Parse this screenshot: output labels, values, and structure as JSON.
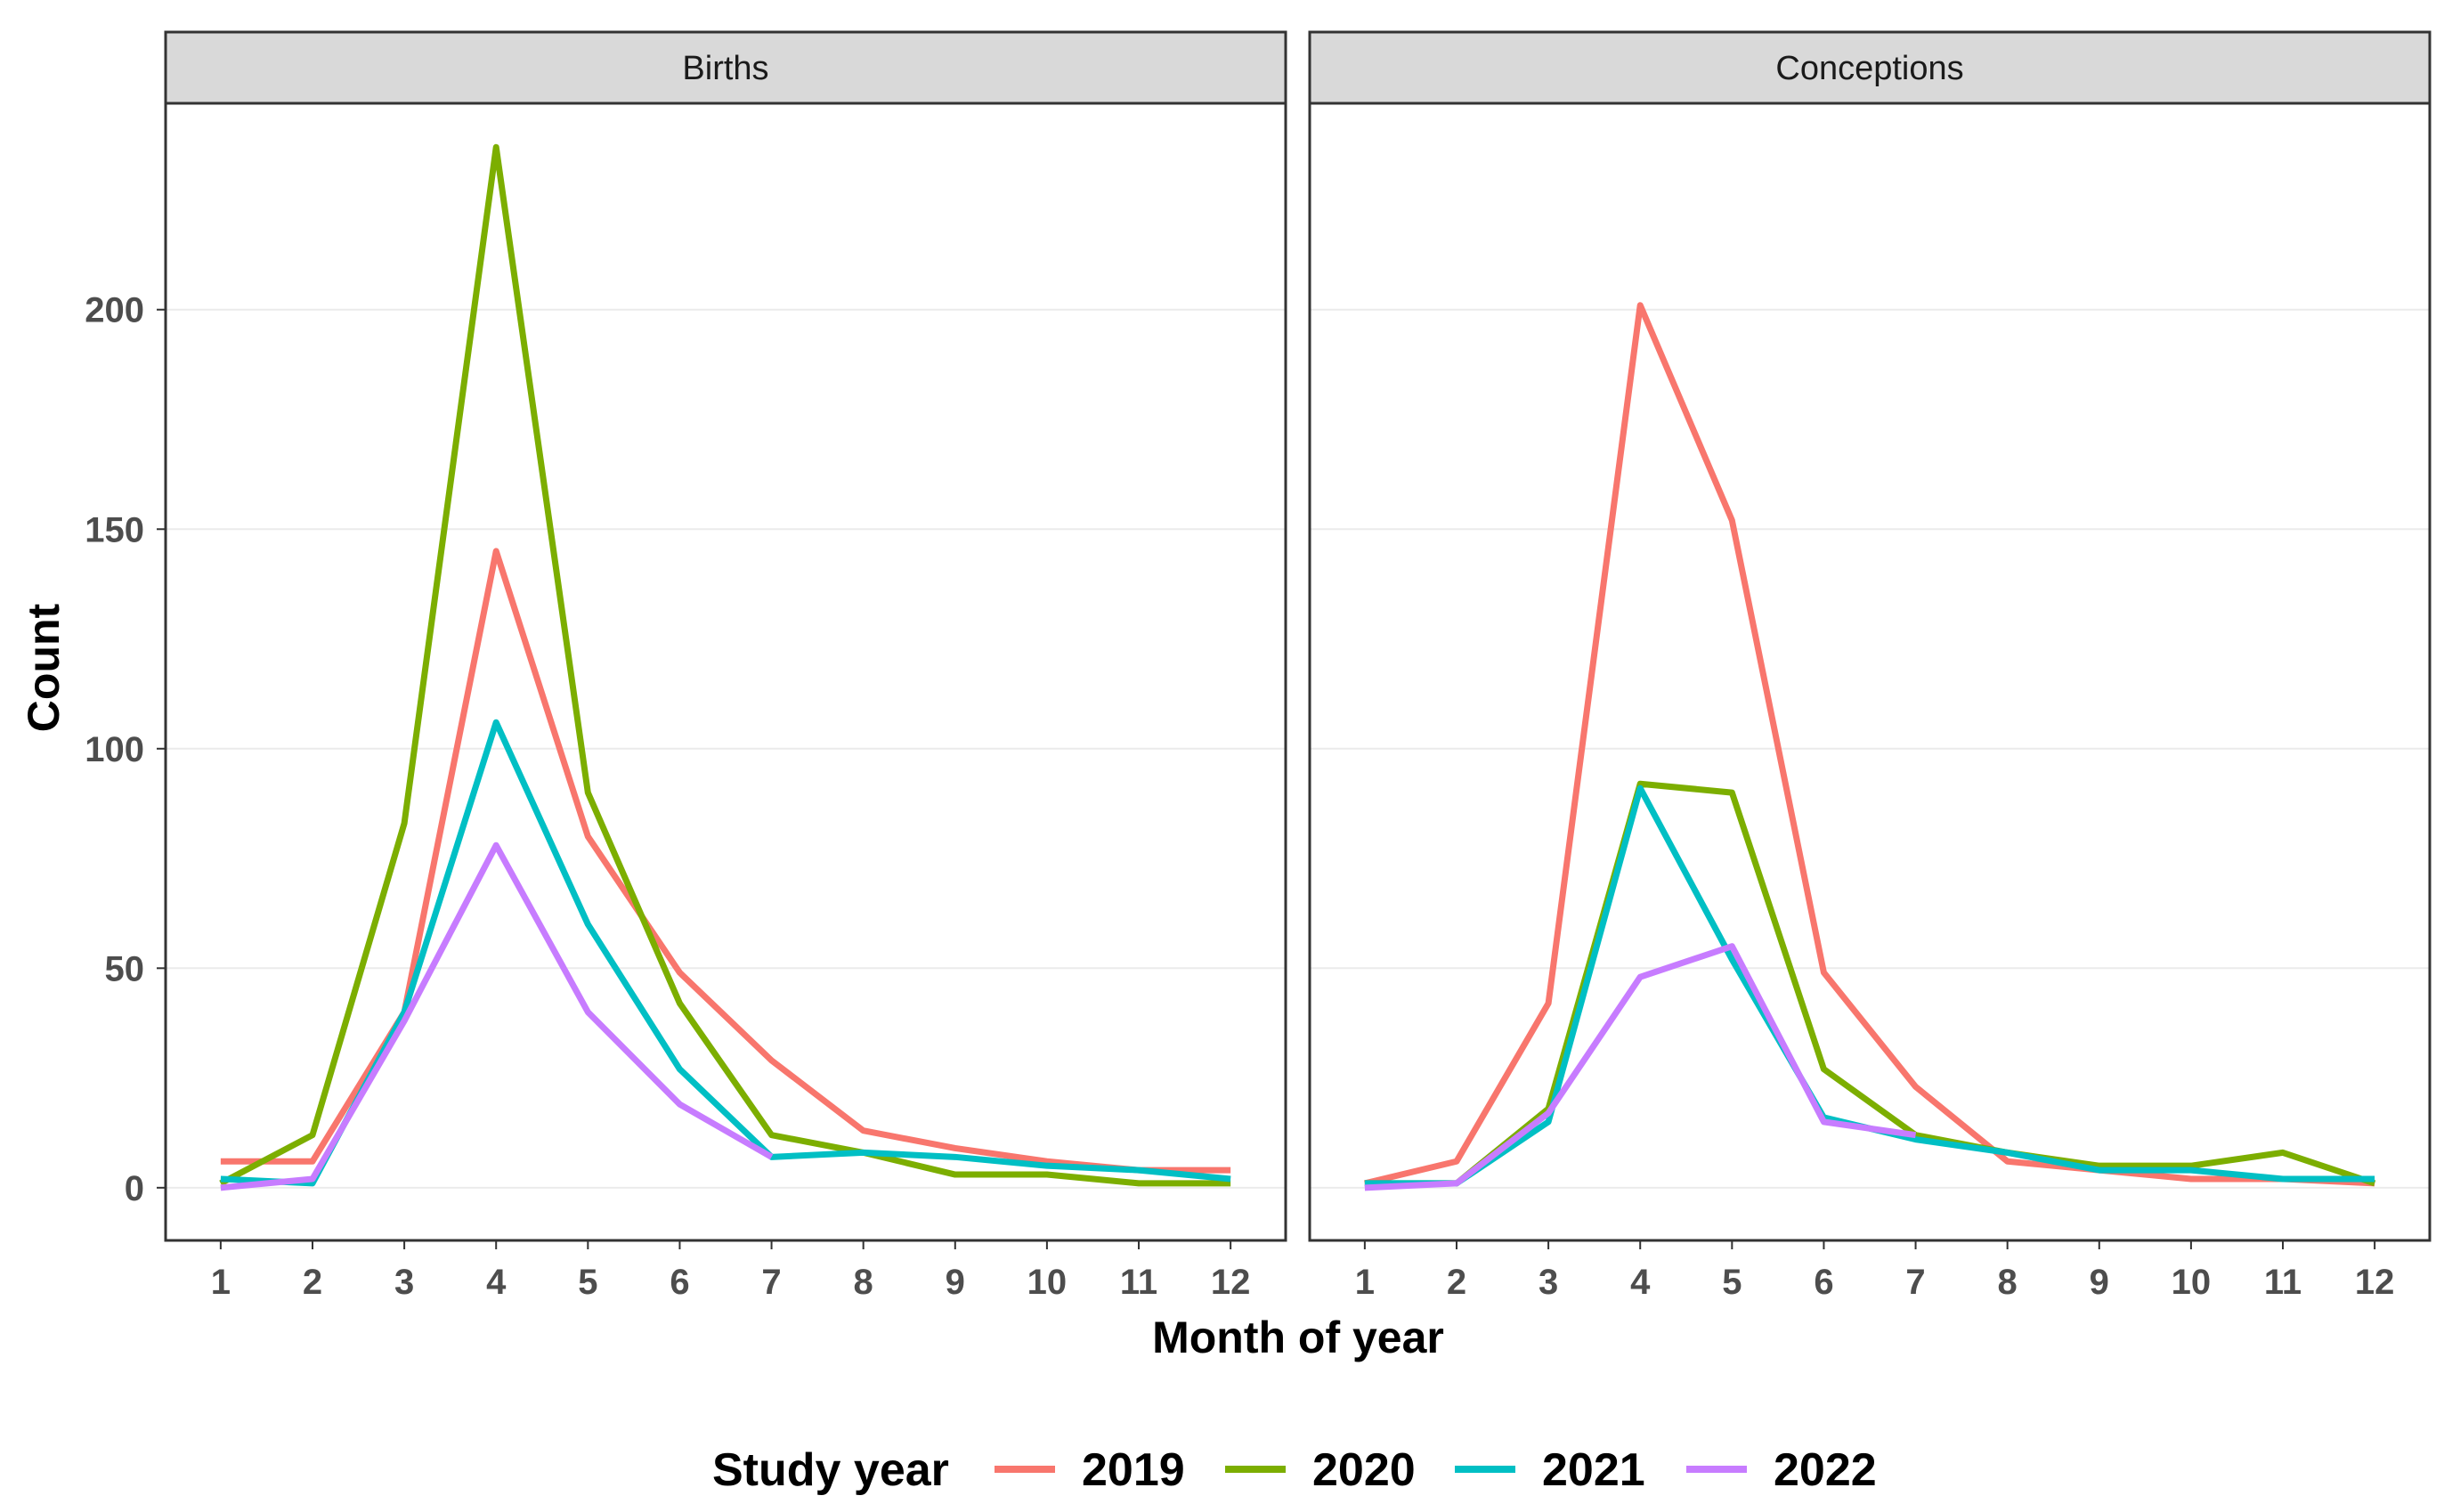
{
  "chart_data": {
    "type": "line",
    "xlabel": "Month of year",
    "ylabel": "Count",
    "x": [
      1,
      2,
      3,
      4,
      5,
      6,
      7,
      8,
      9,
      10,
      11,
      12
    ],
    "ylim": [
      -12,
      247
    ],
    "yticks": [
      0,
      50,
      100,
      150,
      200
    ],
    "grid": true,
    "legend": {
      "title": "Study year",
      "placement": "bottom",
      "entries": [
        "2019",
        "2020",
        "2021",
        "2022"
      ]
    },
    "colors": {
      "2019": "#F8766D",
      "2020": "#7CAE00",
      "2021": "#00BFC4",
      "2022": "#C77CFF"
    },
    "panels": [
      {
        "title": "Births",
        "series": [
          {
            "name": "2019",
            "values": [
              6,
              6,
              40,
              145,
              80,
              49,
              29,
              13,
              9,
              6,
              4,
              4
            ]
          },
          {
            "name": "2020",
            "values": [
              1,
              12,
              83,
              237,
              90,
              42,
              12,
              8,
              3,
              3,
              1,
              1
            ]
          },
          {
            "name": "2021",
            "values": [
              2,
              1,
              40,
              106,
              60,
              27,
              7,
              8,
              7,
              5,
              4,
              2
            ]
          },
          {
            "name": "2022",
            "values": [
              0,
              2,
              38,
              78,
              40,
              19,
              7,
              null,
              null,
              null,
              null,
              null
            ]
          }
        ]
      },
      {
        "title": "Conceptions",
        "series": [
          {
            "name": "2019",
            "values": [
              1,
              6,
              42,
              201,
              152,
              49,
              23,
              6,
              4,
              2,
              2,
              1
            ]
          },
          {
            "name": "2020",
            "values": [
              1,
              1,
              18,
              92,
              90,
              27,
              12,
              8,
              5,
              5,
              8,
              1
            ]
          },
          {
            "name": "2021",
            "values": [
              1,
              1,
              15,
              91,
              52,
              16,
              11,
              8,
              4,
              4,
              2,
              2
            ]
          },
          {
            "name": "2022",
            "values": [
              0,
              1,
              17,
              48,
              55,
              15,
              12,
              null,
              null,
              null,
              null,
              null
            ]
          }
        ]
      }
    ]
  }
}
